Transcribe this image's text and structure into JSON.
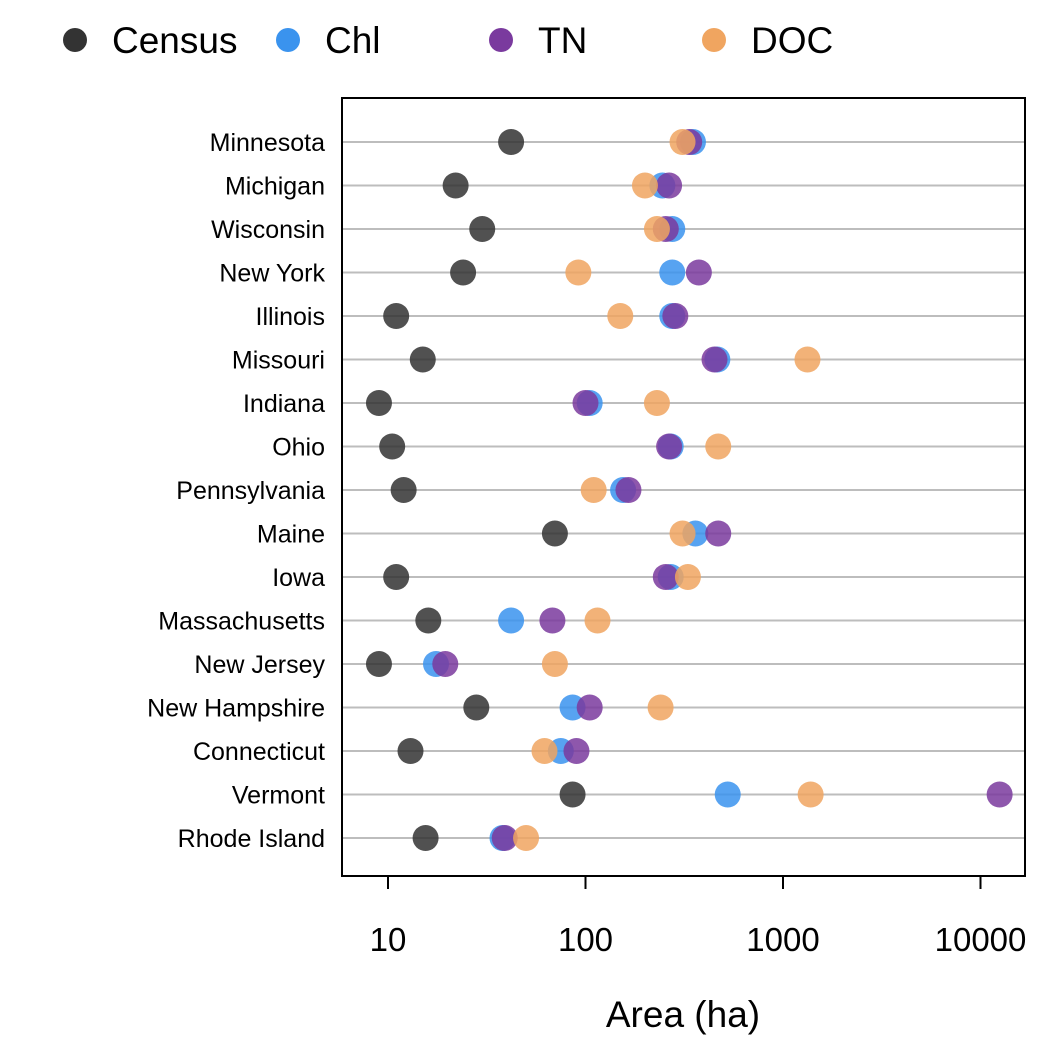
{
  "chart_data": {
    "type": "scatter",
    "xlabel": "Area (ha)",
    "ylabel": "",
    "x_scale": "log",
    "xlim": [
      6,
      15000
    ],
    "x_ticks": [
      10,
      100,
      1000,
      10000
    ],
    "x_tick_labels": [
      "10",
      "100",
      "1000",
      "10000"
    ],
    "grid": "horizontal",
    "legend_position": "top",
    "categories": [
      "Minnesota",
      "Michigan",
      "Wisconsin",
      "New York",
      "Illinois",
      "Missouri",
      "Indiana",
      "Ohio",
      "Pennsylvania",
      "Maine",
      "Iowa",
      "Massachusetts",
      "New Jersey",
      "New Hampshire",
      "Connecticut",
      "Vermont",
      "Rhode Island"
    ],
    "series": [
      {
        "name": "Census",
        "color": "#333333",
        "values": [
          42,
          22,
          30,
          24,
          11,
          15,
          9,
          10.5,
          12,
          70,
          11,
          16,
          9,
          28,
          13,
          86,
          15.5
        ]
      },
      {
        "name": "Chl",
        "color": "#3A93EE",
        "values": [
          350,
          245,
          275,
          275,
          275,
          465,
          105,
          270,
          155,
          360,
          270,
          42,
          17.5,
          86,
          75,
          525,
          38
        ]
      },
      {
        "name": "TN",
        "color": "#7A3A9E",
        "values": [
          335,
          265,
          255,
          375,
          285,
          450,
          100,
          265,
          165,
          470,
          255,
          68,
          19.5,
          105,
          90,
          12500,
          39
        ]
      },
      {
        "name": "DOC",
        "color": "#F0A560",
        "values": [
          310,
          200,
          230,
          92,
          150,
          1330,
          230,
          470,
          110,
          310,
          330,
          115,
          70,
          240,
          62,
          1380,
          50
        ]
      }
    ]
  }
}
